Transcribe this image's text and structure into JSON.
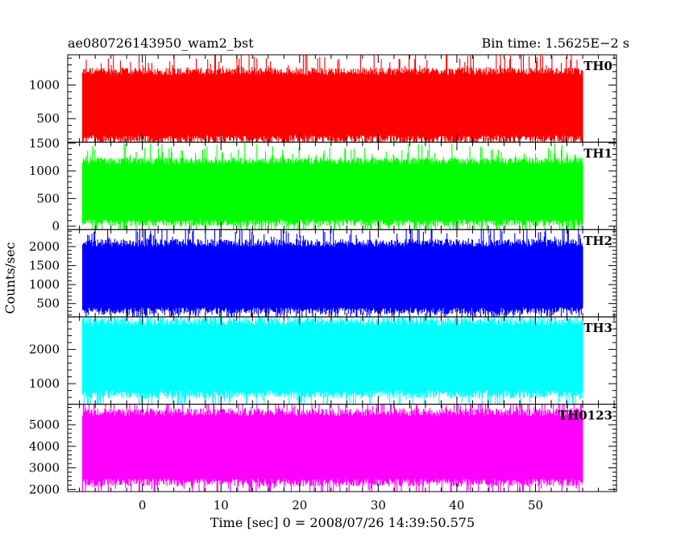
{
  "header": {
    "left_title": "ae080726143950_wam2_bst",
    "right_title": "Bin time: 1.5625E−2 s"
  },
  "chart_data": {
    "type": "line",
    "xlabel": "Time [sec] 0 = 2008/07/26 14:39:50.575",
    "ylabel": "Counts/sec",
    "xlim": [
      -9.5,
      60.3
    ],
    "x_ticks": [
      0,
      10,
      20,
      30,
      40,
      50
    ],
    "x_tick_labels": [
      "0",
      "10",
      "20",
      "30",
      "40",
      "50"
    ],
    "x_data_range": [
      -7.6,
      56.0
    ],
    "bin_time_s": 0.015625,
    "panels": [
      {
        "name": "TH0",
        "color": "#ff0000",
        "ylim": [
          150,
          1450
        ],
        "y_ticks": [
          500,
          1000
        ],
        "y_tick_labels": [
          "500",
          "1000"
        ],
        "typical_range": [
          250,
          1150
        ],
        "mean": 700
      },
      {
        "name": "TH1",
        "color": "#00ff00",
        "ylim": [
          -60,
          1520
        ],
        "y_ticks": [
          0,
          500,
          1000,
          1500
        ],
        "y_tick_labels": [
          "0",
          "500",
          "1000",
          "1500"
        ],
        "typical_range": [
          120,
          1120
        ],
        "mean": 620
      },
      {
        "name": "TH2",
        "color": "#0000ff",
        "ylim": [
          150,
          2450
        ],
        "y_ticks": [
          500,
          1000,
          1500,
          2000
        ],
        "y_tick_labels": [
          "500",
          "1000",
          "1500",
          "2000"
        ],
        "typical_range": [
          400,
          2000
        ],
        "mean": 1050
      },
      {
        "name": "TH3",
        "color": "#00ffff",
        "ylim": [
          400,
          2950
        ],
        "y_ticks": [
          1000,
          2000
        ],
        "y_tick_labels": [
          "1000",
          "2000"
        ],
        "typical_range": [
          800,
          2700
        ],
        "mean": 1900
      },
      {
        "name": "TH0123",
        "color": "#ff00ff",
        "ylim": [
          1900,
          5950
        ],
        "y_ticks": [
          2000,
          3000,
          4000,
          5000
        ],
        "y_tick_labels": [
          "2000",
          "3000",
          "4000",
          "5000"
        ],
        "typical_range": [
          2500,
          5400
        ],
        "mean": 3750
      }
    ]
  }
}
